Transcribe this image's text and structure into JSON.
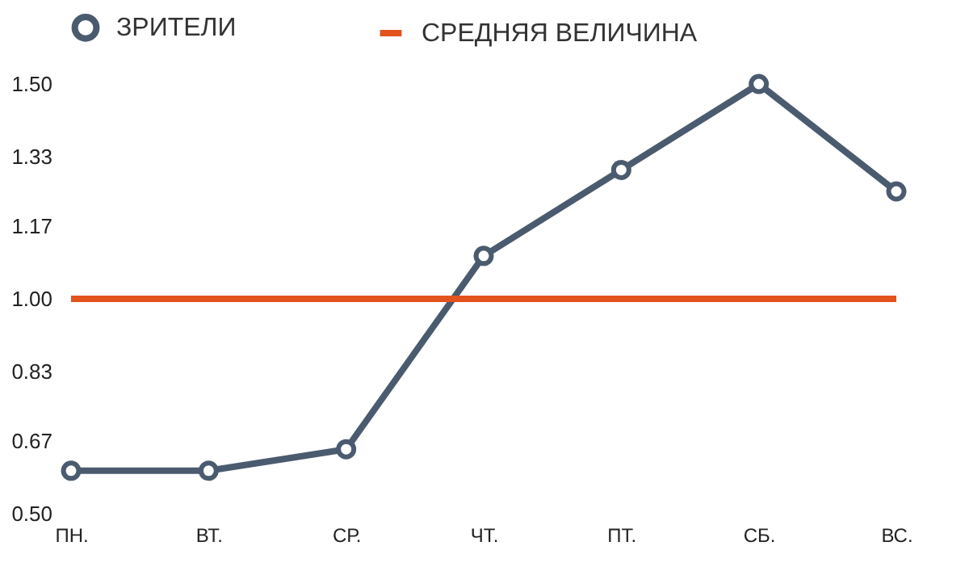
{
  "chart_data": {
    "type": "line",
    "categories": [
      "ПН.",
      "ВТ.",
      "СР.",
      "ЧТ.",
      "ПТ.",
      "СБ.",
      "ВС."
    ],
    "series": [
      {
        "name": "ЗРИТЕЛИ",
        "color": "#4b5b6f",
        "values": [
          0.6,
          0.6,
          0.65,
          1.1,
          1.3,
          1.5,
          1.25
        ]
      }
    ],
    "ylim": [
      0.5,
      1.5
    ],
    "yticks": [
      {
        "value": 0.5,
        "label": "0.50"
      },
      0.67,
      0.83,
      {
        "value": 1,
        "label": "1.00"
      },
      1.17,
      1.33,
      {
        "value": 1.5,
        "label": "1.50"
      }
    ],
    "ref_lines": [
      {
        "axis": "y",
        "value": 1,
        "label": "СРЕДНЯЯ ВЕЛИЧИНА",
        "color": "#e2531d"
      }
    ],
    "legend": "top",
    "marker": "circle",
    "line_style": "solid"
  }
}
